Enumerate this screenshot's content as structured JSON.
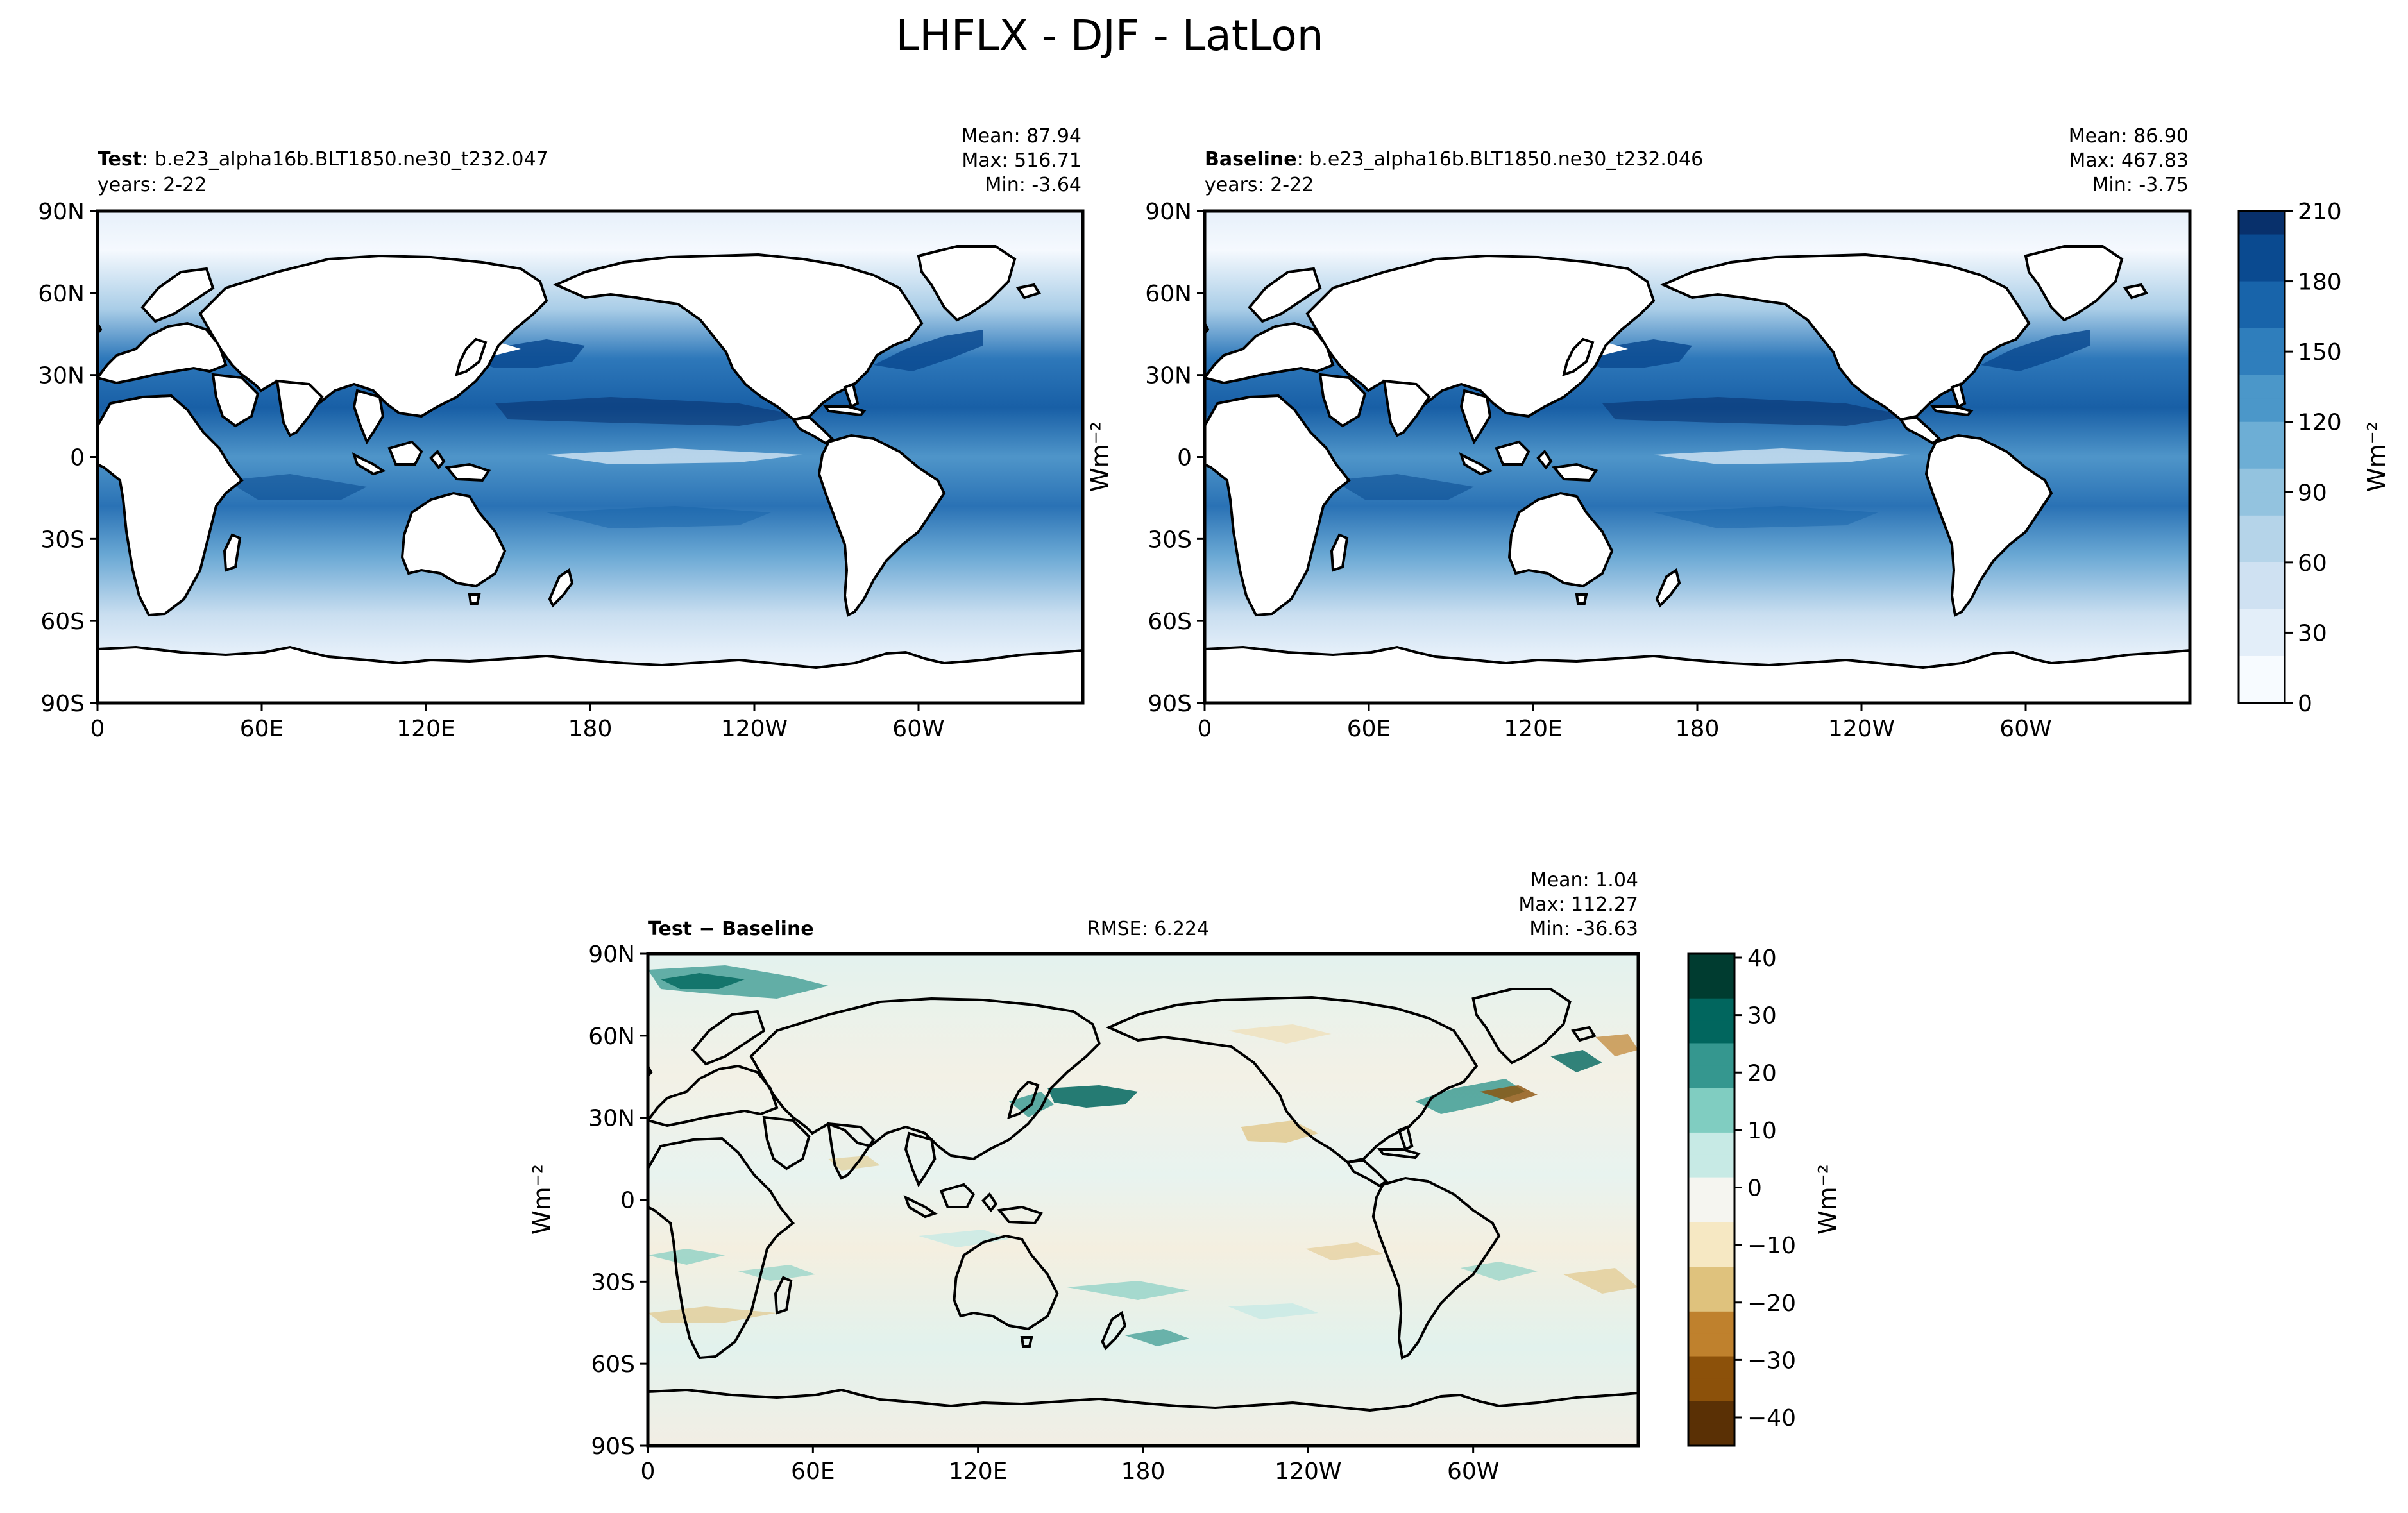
{
  "title": "LHFLX - DJF - LatLon",
  "colors": {
    "seq": [
      "#f7fbff",
      "#e3eef9",
      "#cfe1f2",
      "#b5d4e9",
      "#93c3df",
      "#6daed5",
      "#4b97c9",
      "#2f7ebc",
      "#1864aa",
      "#0a4a90",
      "#08306b"
    ],
    "div_neg": [
      "#5a3005",
      "#8c510a",
      "#bf812d",
      "#dfc27d",
      "#f6e8c3"
    ],
    "div_zero": "#f5f5f0",
    "div_pos": [
      "#c7eae5",
      "#80cdc1",
      "#35978f",
      "#01665e",
      "#003c30"
    ]
  },
  "panels": {
    "test": {
      "label_bold": "Test",
      "label_rest": ": b.e23_alpha16b.BLT1850.ne30_t232.047",
      "years": "years: 2-22",
      "mean": "Mean: 87.94",
      "max": "Max: 516.71",
      "min": "Min: -3.64"
    },
    "baseline": {
      "label_bold": "Baseline",
      "label_rest": ": b.e23_alpha16b.BLT1850.ne30_t232.046",
      "years": "years: 2-22",
      "mean": "Mean: 86.90",
      "max": "Max: 467.83",
      "min": "Min: -3.75"
    },
    "diff": {
      "label_a": "Test",
      "label_op": " − ",
      "label_b": "Baseline",
      "rmse": "RMSE: 6.224",
      "mean": "Mean:  1.04",
      "max": "Max: 112.27",
      "min": "Min: -36.63"
    }
  },
  "axes": {
    "lat_ticks": [
      "90N",
      "60N",
      "30N",
      "0",
      "30S",
      "60S",
      "90S"
    ],
    "lon_ticks": [
      "0",
      "60E",
      "120E",
      "180",
      "120W",
      "60W"
    ],
    "units": "Wm⁻²"
  },
  "colorbars": {
    "seq": {
      "ticks": [
        "210",
        "180",
        "150",
        "120",
        "90",
        "60",
        "30",
        "0"
      ],
      "units": "Wm⁻²"
    },
    "diff": {
      "ticks": [
        "40",
        "30",
        "20",
        "10",
        "0",
        "−10",
        "−20",
        "−30",
        "−40"
      ],
      "units": "Wm⁻²"
    }
  }
}
